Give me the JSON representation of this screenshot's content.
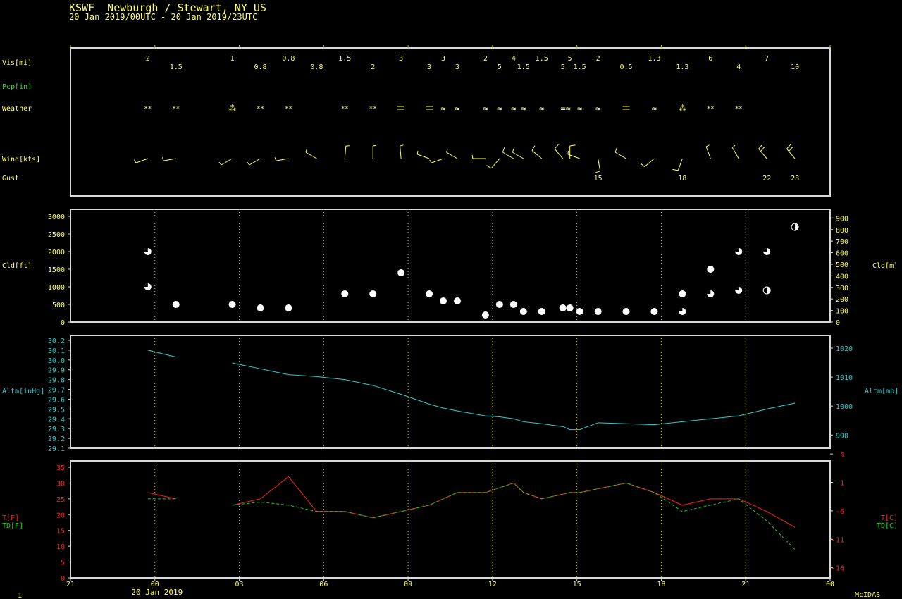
{
  "header": {
    "line1": "KSWF  Newburgh / Stewart, NY US",
    "line2": "20 Jan 2019/00UTC - 20 Jan 2019/23UTC"
  },
  "footer": {
    "date_label": "20 Jan 2019",
    "page_number": "1",
    "software": "McIDAS"
  },
  "colors": {
    "text": "#ffff66",
    "frame": "#d8d8d8",
    "grid": "#c8c800",
    "precip_label": "#33dd33",
    "altimeter": "#33cccc",
    "temperature": "#ff2020",
    "dewpoint": "#22cc22"
  },
  "chart_data": [
    {
      "type": "table",
      "title": "Surface observations",
      "x_ticks": [
        "21",
        "00",
        "03",
        "06",
        "09",
        "12",
        "15",
        "18",
        "21",
        "00"
      ],
      "x_tick_hours": [
        -3,
        0,
        3,
        6,
        9,
        12,
        15,
        18,
        21,
        24
      ],
      "row_labels": {
        "vis": "Vis[mi]",
        "pcp": "Pcp[in]",
        "weather": "Weather",
        "wind": "Wind[kts]",
        "gust": "Gust"
      },
      "visibility": [
        {
          "t": -0.25,
          "v": "2",
          "row": 0
        },
        {
          "t": 0.75,
          "v": "1.5",
          "row": 1
        },
        {
          "t": 2.75,
          "v": "1",
          "row": 0
        },
        {
          "t": 3.75,
          "v": "0.8",
          "row": 1
        },
        {
          "t": 4.75,
          "v": "0.8",
          "row": 0
        },
        {
          "t": 5.75,
          "v": "0.8",
          "row": 1
        },
        {
          "t": 6.75,
          "v": "1.5",
          "row": 0
        },
        {
          "t": 7.75,
          "v": "2",
          "row": 1
        },
        {
          "t": 8.75,
          "v": "3",
          "row": 0
        },
        {
          "t": 9.75,
          "v": "3",
          "row": 1
        },
        {
          "t": 10.25,
          "v": "3",
          "row": 0
        },
        {
          "t": 10.75,
          "v": "3",
          "row": 1
        },
        {
          "t": 11.75,
          "v": "2",
          "row": 0
        },
        {
          "t": 12.25,
          "v": "5",
          "row": 1
        },
        {
          "t": 12.75,
          "v": "4",
          "row": 0
        },
        {
          "t": 13.1,
          "v": "1.5",
          "row": 1
        },
        {
          "t": 13.75,
          "v": "1.5",
          "row": 0
        },
        {
          "t": 14.5,
          "v": "5",
          "row": 1
        },
        {
          "t": 14.75,
          "v": "5",
          "row": 0
        },
        {
          "t": 15.1,
          "v": "1.5",
          "row": 1
        },
        {
          "t": 15.75,
          "v": "2",
          "row": 0
        },
        {
          "t": 16.75,
          "v": "0.5",
          "row": 1
        },
        {
          "t": 17.75,
          "v": "1.3",
          "row": 0
        },
        {
          "t": 18.75,
          "v": "1.3",
          "row": 1
        },
        {
          "t": 19.75,
          "v": "6",
          "row": 0
        },
        {
          "t": 20.75,
          "v": "4",
          "row": 1
        },
        {
          "t": 21.75,
          "v": "7",
          "row": 0
        },
        {
          "t": 22.75,
          "v": "10",
          "row": 1
        }
      ],
      "weather": [
        {
          "t": -0.25,
          "sym": "snow"
        },
        {
          "t": 0.75,
          "sym": "snow"
        },
        {
          "t": 2.75,
          "sym": "heavy-snow"
        },
        {
          "t": 3.75,
          "sym": "snow"
        },
        {
          "t": 4.75,
          "sym": "snow"
        },
        {
          "t": 6.75,
          "sym": "snow"
        },
        {
          "t": 7.75,
          "sym": "snow"
        },
        {
          "t": 8.75,
          "sym": "mist"
        },
        {
          "t": 9.75,
          "sym": "mist"
        },
        {
          "t": 10.25,
          "sym": "drizzle"
        },
        {
          "t": 10.75,
          "sym": "drizzle"
        },
        {
          "t": 11.75,
          "sym": "drizzle"
        },
        {
          "t": 12.25,
          "sym": "drizzle"
        },
        {
          "t": 12.75,
          "sym": "drizzle"
        },
        {
          "t": 13.1,
          "sym": "drizzle"
        },
        {
          "t": 13.75,
          "sym": "drizzle"
        },
        {
          "t": 14.6,
          "sym": "mist-drizzle"
        },
        {
          "t": 15.1,
          "sym": "drizzle"
        },
        {
          "t": 15.75,
          "sym": "drizzle"
        },
        {
          "t": 16.75,
          "sym": "mist"
        },
        {
          "t": 17.75,
          "sym": "drizzle"
        },
        {
          "t": 18.75,
          "sym": "heavy-snow"
        },
        {
          "t": 19.75,
          "sym": "snow"
        },
        {
          "t": 20.75,
          "sym": "snow"
        }
      ],
      "wind": [
        {
          "t": -0.25,
          "dir": 250,
          "kt": 5
        },
        {
          "t": 0.75,
          "dir": 260,
          "kt": 5
        },
        {
          "t": 2.75,
          "dir": 240,
          "kt": 5
        },
        {
          "t": 3.75,
          "dir": 240,
          "kt": 5
        },
        {
          "t": 4.75,
          "dir": 260,
          "kt": 5
        },
        {
          "t": 5.75,
          "dir": 300,
          "kt": 5
        },
        {
          "t": 6.75,
          "dir": 5,
          "kt": 5
        },
        {
          "t": 7.75,
          "dir": 0,
          "kt": 5
        },
        {
          "t": 8.75,
          "dir": 355,
          "kt": 5
        },
        {
          "t": 9.75,
          "dir": 290,
          "kt": 5
        },
        {
          "t": 10.25,
          "dir": 250,
          "kt": 5
        },
        {
          "t": 10.75,
          "dir": 300,
          "kt": 5
        },
        {
          "t": 11.75,
          "dir": 270,
          "kt": 5
        },
        {
          "t": 12.25,
          "dir": 220,
          "kt": 10
        },
        {
          "t": 12.75,
          "dir": 300,
          "kt": 10
        },
        {
          "t": 13.1,
          "dir": 300,
          "kt": 10
        },
        {
          "t": 13.75,
          "dir": 310,
          "kt": 10
        },
        {
          "t": 14.5,
          "dir": 320,
          "kt": 10
        },
        {
          "t": 14.75,
          "dir": 0,
          "kt": 10
        },
        {
          "t": 15.1,
          "dir": 290,
          "kt": 5
        },
        {
          "t": 15.75,
          "dir": 170,
          "kt": 10
        },
        {
          "t": 16.75,
          "dir": 300,
          "kt": 10
        },
        {
          "t": 17.75,
          "dir": 230,
          "kt": 10
        },
        {
          "t": 18.75,
          "dir": 200,
          "kt": 10
        },
        {
          "t": 19.75,
          "dir": 340,
          "kt": 5
        },
        {
          "t": 20.75,
          "dir": 330,
          "kt": 5
        },
        {
          "t": 21.75,
          "dir": 320,
          "kt": 15
        },
        {
          "t": 22.75,
          "dir": 320,
          "kt": 15
        }
      ],
      "gusts": [
        {
          "t": 15.75,
          "v": "15"
        },
        {
          "t": 18.75,
          "v": "18"
        },
        {
          "t": 21.75,
          "v": "22"
        },
        {
          "t": 22.75,
          "v": "28"
        }
      ]
    },
    {
      "type": "scatter",
      "ylabel": "Cld[ft]",
      "ylabel_right": "Cld[m]",
      "ylim": [
        0,
        3000
      ],
      "yticks": [
        0,
        500,
        1000,
        1500,
        2000,
        2500,
        3000
      ],
      "yticks_right": [
        0,
        100,
        200,
        300,
        400,
        500,
        600,
        700,
        800,
        900
      ],
      "points": [
        {
          "t": -0.25,
          "ft": 2000,
          "cover": "broken"
        },
        {
          "t": -0.25,
          "ft": 1000,
          "cover": "broken"
        },
        {
          "t": 0.75,
          "ft": 500,
          "cover": "overcast"
        },
        {
          "t": 2.75,
          "ft": 500,
          "cover": "overcast"
        },
        {
          "t": 3.75,
          "ft": 400,
          "cover": "overcast"
        },
        {
          "t": 4.75,
          "ft": 400,
          "cover": "overcast"
        },
        {
          "t": 6.75,
          "ft": 800,
          "cover": "overcast"
        },
        {
          "t": 7.75,
          "ft": 800,
          "cover": "overcast"
        },
        {
          "t": 8.75,
          "ft": 1400,
          "cover": "overcast"
        },
        {
          "t": 9.75,
          "ft": 800,
          "cover": "overcast"
        },
        {
          "t": 10.25,
          "ft": 600,
          "cover": "overcast"
        },
        {
          "t": 10.75,
          "ft": 600,
          "cover": "overcast"
        },
        {
          "t": 11.75,
          "ft": 200,
          "cover": "overcast"
        },
        {
          "t": 12.25,
          "ft": 500,
          "cover": "overcast"
        },
        {
          "t": 12.75,
          "ft": 500,
          "cover": "overcast"
        },
        {
          "t": 13.1,
          "ft": 300,
          "cover": "overcast"
        },
        {
          "t": 13.75,
          "ft": 300,
          "cover": "overcast"
        },
        {
          "t": 14.5,
          "ft": 400,
          "cover": "overcast"
        },
        {
          "t": 14.75,
          "ft": 400,
          "cover": "overcast"
        },
        {
          "t": 15.1,
          "ft": 300,
          "cover": "overcast"
        },
        {
          "t": 15.75,
          "ft": 300,
          "cover": "overcast"
        },
        {
          "t": 16.75,
          "ft": 300,
          "cover": "overcast"
        },
        {
          "t": 17.75,
          "ft": 300,
          "cover": "overcast"
        },
        {
          "t": 18.75,
          "ft": 800,
          "cover": "overcast"
        },
        {
          "t": 18.75,
          "ft": 300,
          "cover": "broken"
        },
        {
          "t": 19.75,
          "ft": 1500,
          "cover": "overcast"
        },
        {
          "t": 19.75,
          "ft": 800,
          "cover": "broken"
        },
        {
          "t": 20.75,
          "ft": 2000,
          "cover": "broken"
        },
        {
          "t": 20.75,
          "ft": 900,
          "cover": "broken"
        },
        {
          "t": 21.75,
          "ft": 2000,
          "cover": "broken"
        },
        {
          "t": 21.75,
          "ft": 900,
          "cover": "scattered"
        },
        {
          "t": 22.75,
          "ft": 2700,
          "cover": "scattered"
        }
      ]
    },
    {
      "type": "line",
      "ylabel": "Altm[inHg]",
      "ylabel_right": "Altm[mb]",
      "ylim": [
        29.1,
        30.25
      ],
      "yticks": [
        "29.1",
        "29.2",
        "29.3",
        "29.4",
        "29.5",
        "29.6",
        "29.7",
        "29.8",
        "29.9",
        "30.0",
        "30.1",
        "30.2"
      ],
      "yticks_right": [
        "990",
        "1000",
        "1010",
        "1020"
      ],
      "segments": [
        [
          [
            -0.25,
            30.1
          ],
          [
            0.75,
            30.03
          ]
        ],
        [
          [
            2.75,
            29.97
          ],
          [
            3.75,
            29.91
          ],
          [
            4.75,
            29.85
          ],
          [
            5.75,
            29.83
          ],
          [
            6.75,
            29.8
          ],
          [
            7.75,
            29.74
          ],
          [
            8.75,
            29.65
          ],
          [
            9.75,
            29.55
          ],
          [
            10.25,
            29.51
          ],
          [
            10.75,
            29.48
          ],
          [
            11.75,
            29.43
          ],
          [
            12.25,
            29.42
          ],
          [
            12.75,
            29.4
          ],
          [
            13.1,
            29.37
          ],
          [
            13.75,
            29.35
          ],
          [
            14.5,
            29.32
          ],
          [
            14.75,
            29.29
          ],
          [
            15.1,
            29.29
          ],
          [
            15.75,
            29.36
          ],
          [
            16.75,
            29.35
          ],
          [
            17.75,
            29.34
          ],
          [
            18.75,
            29.37
          ],
          [
            19.75,
            29.4
          ],
          [
            20.75,
            29.43
          ],
          [
            21.75,
            29.5
          ],
          [
            22.75,
            29.56
          ]
        ]
      ]
    },
    {
      "type": "line",
      "ylim": [
        0,
        37
      ],
      "yticks": [
        0,
        5,
        10,
        15,
        20,
        25,
        30,
        35
      ],
      "yticks_right": [
        "4",
        "-1",
        "-6",
        "-11",
        "-16"
      ],
      "series": [
        {
          "name": "T[F]",
          "segments": [
            [
              [
                -0.25,
                27
              ],
              [
                0.75,
                25
              ]
            ],
            [
              [
                2.75,
                23
              ],
              [
                3.75,
                25
              ],
              [
                4.75,
                32
              ],
              [
                5.75,
                21
              ],
              [
                6.75,
                21
              ],
              [
                7.75,
                19
              ],
              [
                8.75,
                21
              ],
              [
                9.75,
                23
              ],
              [
                10.75,
                27
              ],
              [
                11.75,
                27
              ],
              [
                12.75,
                30
              ],
              [
                13.1,
                27
              ],
              [
                13.75,
                25
              ],
              [
                14.75,
                27
              ],
              [
                15.1,
                27
              ],
              [
                16.75,
                30
              ],
              [
                17.75,
                27
              ],
              [
                18.75,
                23
              ],
              [
                19.75,
                25
              ],
              [
                20.75,
                25
              ],
              [
                21.75,
                21
              ],
              [
                22.75,
                16
              ]
            ]
          ]
        },
        {
          "name": "TD[F]",
          "segments": [
            [
              [
                -0.25,
                25
              ],
              [
                0.75,
                25
              ]
            ],
            [
              [
                2.75,
                23
              ],
              [
                3.75,
                24
              ],
              [
                4.75,
                23
              ],
              [
                5.75,
                21
              ],
              [
                6.75,
                21
              ],
              [
                7.75,
                19
              ],
              [
                8.75,
                21
              ],
              [
                9.75,
                23
              ],
              [
                10.75,
                27
              ],
              [
                11.75,
                27
              ],
              [
                12.75,
                30
              ],
              [
                13.1,
                27
              ],
              [
                13.75,
                25
              ],
              [
                14.75,
                27
              ],
              [
                15.1,
                27
              ],
              [
                16.75,
                30
              ],
              [
                17.75,
                27
              ],
              [
                18.75,
                21
              ],
              [
                19.75,
                23
              ],
              [
                20.75,
                25
              ],
              [
                21.75,
                18
              ],
              [
                22.75,
                9
              ]
            ]
          ]
        }
      ],
      "right_labels": [
        "T[C]",
        "TD[C]"
      ]
    }
  ]
}
